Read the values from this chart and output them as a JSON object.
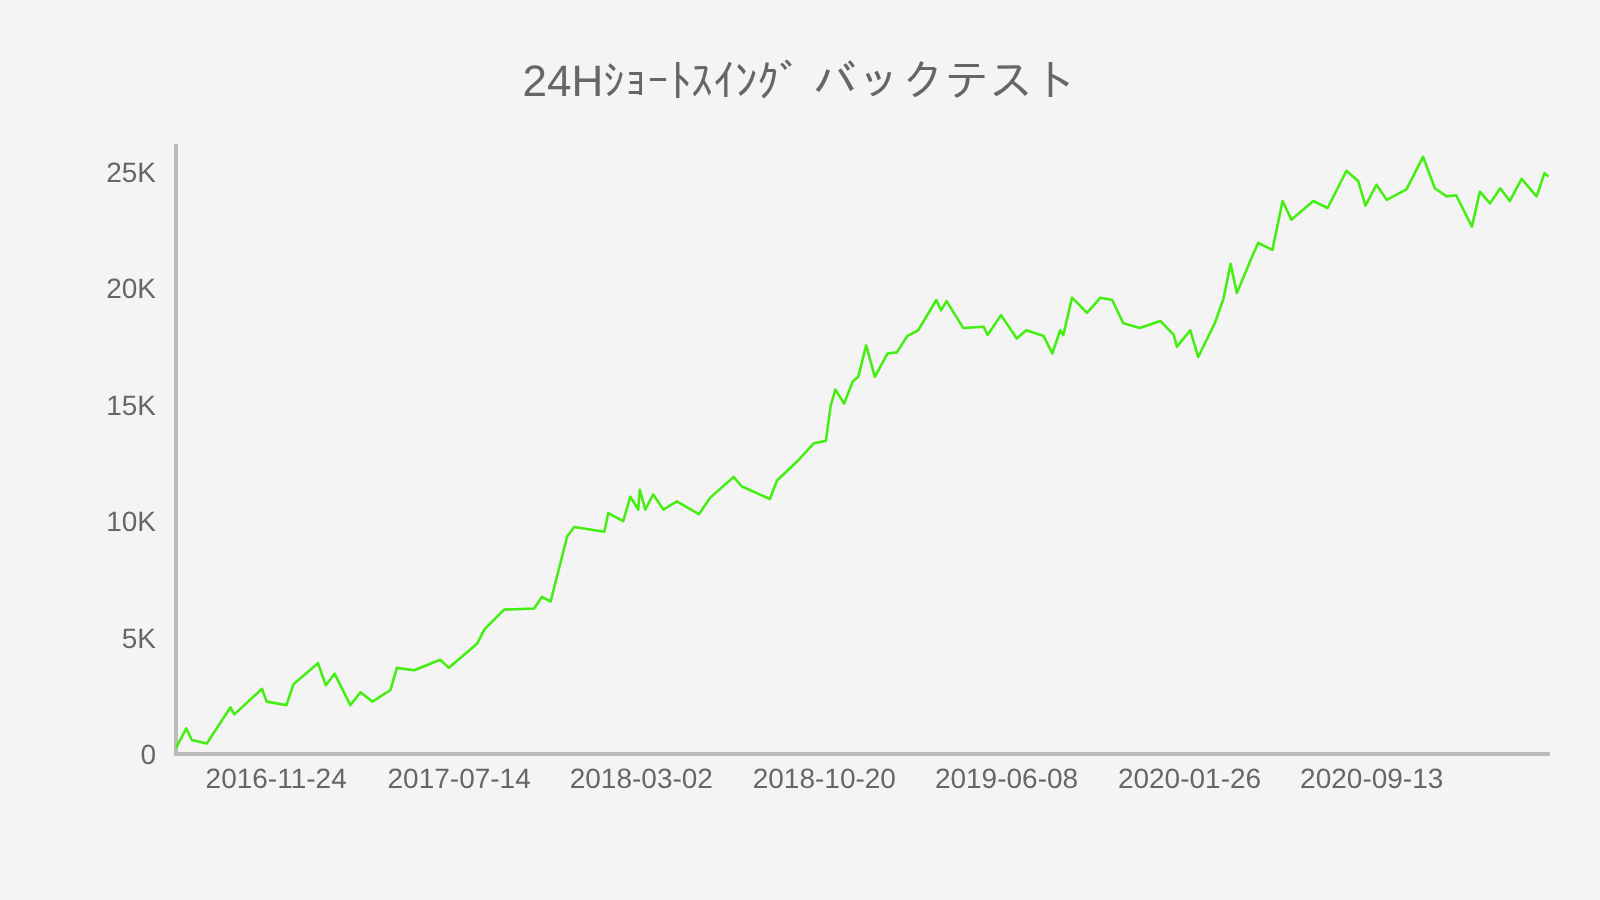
{
  "chart_data": {
    "type": "line",
    "title": "24Hｼｮｰﾄｽｲﾝｸﾞ バックテスト",
    "x": [
      "2016-07-20",
      "2016-08-02",
      "2016-08-09",
      "2016-08-28",
      "2016-09-27",
      "2016-10-02",
      "2016-11-06",
      "2016-11-12",
      "2016-12-07",
      "2016-12-16",
      "2017-01-16",
      "2017-01-26",
      "2017-02-06",
      "2017-02-26",
      "2017-03-11",
      "2017-03-26",
      "2017-04-18",
      "2017-04-26",
      "2017-05-18",
      "2017-06-20",
      "2017-07-01",
      "2017-08-06",
      "2017-08-15",
      "2017-09-09",
      "2017-10-17",
      "2017-10-27",
      "2017-11-07",
      "2017-11-28",
      "2017-12-07",
      "2018-01-14",
      "2018-01-19",
      "2018-02-07",
      "2018-02-16",
      "2018-02-26",
      "2018-02-28",
      "2018-03-07",
      "2018-03-17",
      "2018-03-30",
      "2018-04-16",
      "2018-05-14",
      "2018-05-28",
      "2018-06-27",
      "2018-07-07",
      "2018-08-12",
      "2018-08-21",
      "2018-09-15",
      "2018-10-07",
      "2018-10-22",
      "2018-10-28",
      "2018-11-03",
      "2018-11-14",
      "2018-11-25",
      "2018-12-02",
      "2018-12-12",
      "2018-12-23",
      "2019-01-08",
      "2019-01-20",
      "2019-02-02",
      "2019-02-16",
      "2019-03-11",
      "2019-03-17",
      "2019-03-24",
      "2019-04-14",
      "2019-05-10",
      "2019-05-15",
      "2019-06-01",
      "2019-06-21",
      "2019-07-03",
      "2019-07-25",
      "2019-08-05",
      "2019-08-15",
      "2019-08-19",
      "2019-08-30",
      "2019-09-18",
      "2019-10-05",
      "2019-10-20",
      "2019-11-03",
      "2019-11-24",
      "2019-12-20",
      "2020-01-06",
      "2020-01-10",
      "2020-01-27",
      "2020-02-06",
      "2020-02-27",
      "2020-03-09",
      "2020-03-18",
      "2020-03-26",
      "2020-04-16",
      "2020-04-22",
      "2020-05-10",
      "2020-05-23",
      "2020-06-03",
      "2020-07-01",
      "2020-07-19",
      "2020-08-12",
      "2020-08-27",
      "2020-09-05",
      "2020-09-19",
      "2020-10-02",
      "2020-10-27",
      "2020-11-17",
      "2020-12-02",
      "2020-12-17",
      "2020-12-29",
      "2021-01-18",
      "2021-01-28",
      "2021-02-10",
      "2021-02-23",
      "2021-03-07",
      "2021-03-22",
      "2021-04-10",
      "2021-04-20",
      "2021-04-25"
    ],
    "series": [
      {
        "color": "#44ee11",
        "values": [
          250,
          1100,
          600,
          450,
          2000,
          1700,
          2800,
          2250,
          2100,
          3000,
          3900,
          2950,
          3450,
          2100,
          2650,
          2250,
          2750,
          3700,
          3600,
          4050,
          3700,
          4750,
          5350,
          6200,
          6250,
          6750,
          6550,
          9350,
          9750,
          9550,
          10350,
          10000,
          11050,
          10500,
          11350,
          10500,
          11150,
          10500,
          10850,
          10300,
          11000,
          11900,
          11500,
          10950,
          11750,
          12550,
          13350,
          13450,
          14950,
          15650,
          15050,
          16000,
          16200,
          17550,
          16200,
          17200,
          17250,
          17950,
          18200,
          19500,
          19050,
          19450,
          18300,
          18350,
          18000,
          18850,
          17850,
          18200,
          17950,
          17200,
          18200,
          18000,
          19600,
          18950,
          19600,
          19500,
          18500,
          18300,
          18600,
          18000,
          17500,
          18200,
          17050,
          18500,
          19550,
          21050,
          19800,
          21500,
          21950,
          21650,
          23750,
          22950,
          23750,
          23450,
          25050,
          24600,
          23550,
          24450,
          23800,
          24250,
          25650,
          24300,
          23950,
          24000,
          22650,
          24150,
          23650,
          24300,
          23750,
          24700,
          23950,
          24950,
          24800
        ]
      }
    ],
    "xlim": [
      "2016-07-20",
      "2021-04-27"
    ],
    "xticks": [
      "2016-11-24",
      "2017-07-14",
      "2018-03-02",
      "2018-10-20",
      "2019-06-08",
      "2020-01-26",
      "2020-09-13"
    ],
    "ylim": [
      0,
      26200
    ],
    "yticks": [
      0,
      {
        "value": 5000,
        "label": "5K"
      },
      {
        "value": 10000,
        "label": "10K"
      },
      {
        "value": 15000,
        "label": "15K"
      },
      {
        "value": 20000,
        "label": "20K"
      },
      {
        "value": 25000,
        "label": "25K"
      }
    ]
  }
}
